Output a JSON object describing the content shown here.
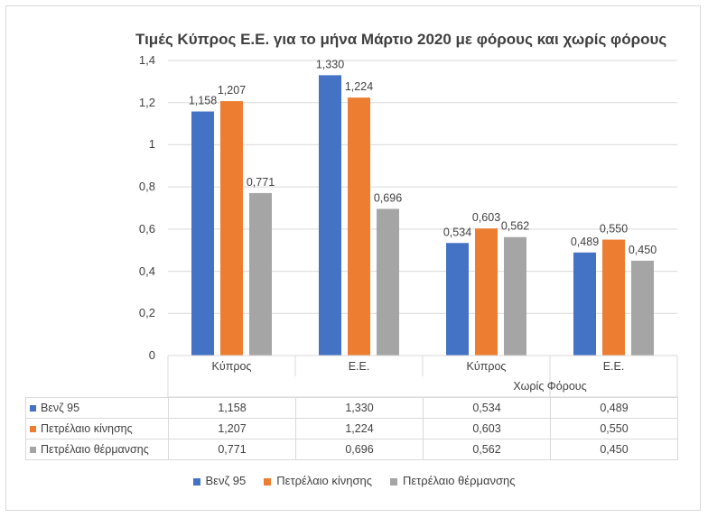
{
  "chart_data": {
    "type": "bar",
    "title": "Τιμές Κύπρος Ε.Ε. για το μήνα Μάρτιο 2020 με φόρους και χωρίς φόρους",
    "categories": [
      "Κύπρος",
      "Ε.Ε.",
      "Κύπρος",
      "Ε.Ε."
    ],
    "category_group": {
      "label": "Χωρίς Φόρους",
      "applies_to": [
        2,
        3
      ]
    },
    "series": [
      {
        "name": "Βενζ 95",
        "color": "#4472C4",
        "values": [
          1.158,
          1.33,
          0.534,
          0.489
        ],
        "labels": [
          "1,158",
          "1,330",
          "0,534",
          "0,489"
        ]
      },
      {
        "name": "Πετρέλαιο κίνησης",
        "color": "#ED7D31",
        "values": [
          1.207,
          1.224,
          0.603,
          0.55
        ],
        "labels": [
          "1,207",
          "1,224",
          "0,603",
          "0,550"
        ]
      },
      {
        "name": "Πετρέλαιο θέρμανσης",
        "color": "#A5A5A5",
        "values": [
          0.771,
          0.696,
          0.562,
          0.45
        ],
        "labels": [
          "0,771",
          "0,696",
          "0,562",
          "0,450"
        ]
      }
    ],
    "ylim": [
      0,
      1.4
    ],
    "y_ticks": [
      {
        "value": 0,
        "label": "0"
      },
      {
        "value": 0.2,
        "label": "0,2"
      },
      {
        "value": 0.4,
        "label": "0,4"
      },
      {
        "value": 0.6,
        "label": "0,6"
      },
      {
        "value": 0.8,
        "label": "0,8"
      },
      {
        "value": 1.0,
        "label": "1"
      },
      {
        "value": 1.2,
        "label": "1,2"
      },
      {
        "value": 1.4,
        "label": "1,4"
      }
    ],
    "grid": true,
    "data_table": true,
    "legend_position": "bottom",
    "xlabel": "",
    "ylabel": ""
  }
}
